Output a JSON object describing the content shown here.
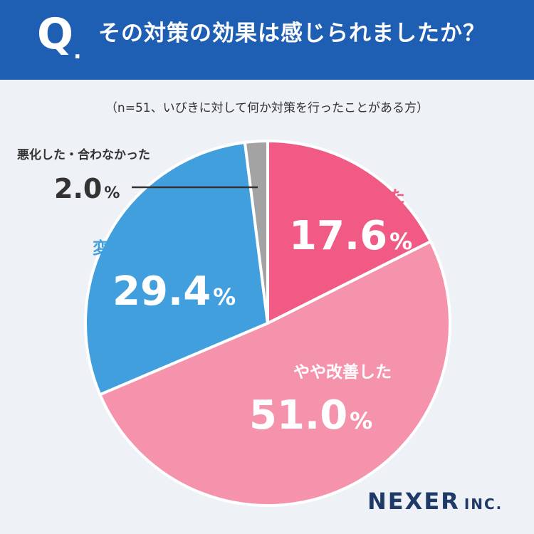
{
  "header": {
    "q_mark": "Q",
    "q_dot": ".",
    "question": "その対策の効果は感じられましたか？"
  },
  "note": "（n=51、いびきに対して何か対策を行ったことがある方）",
  "colors": {
    "header_bg": "#1e5fb4",
    "background": "#eef1f6",
    "greatly_improved": "#f05a84",
    "somewhat_improved": "#f693ac",
    "no_change": "#429fdd",
    "worsened": "#a3a3a3",
    "brand": "#1f3a66"
  },
  "chart_data": {
    "type": "pie",
    "start": "12 o'clock, clockwise",
    "slices": [
      {
        "label": "かなり改善した",
        "value": 17.6,
        "value_text": "17.6",
        "unit": "%"
      },
      {
        "label": "やや改善した",
        "value": 51.0,
        "value_text": "51.0",
        "unit": "%"
      },
      {
        "label": "変わらなかった",
        "value": 29.4,
        "value_text": "29.4",
        "unit": "%"
      },
      {
        "label": "悪化した・合わなかった",
        "value": 2.0,
        "value_text": "2.0",
        "unit": "%"
      }
    ]
  },
  "brand": {
    "name": "NEXER",
    "suffix": "INC."
  }
}
